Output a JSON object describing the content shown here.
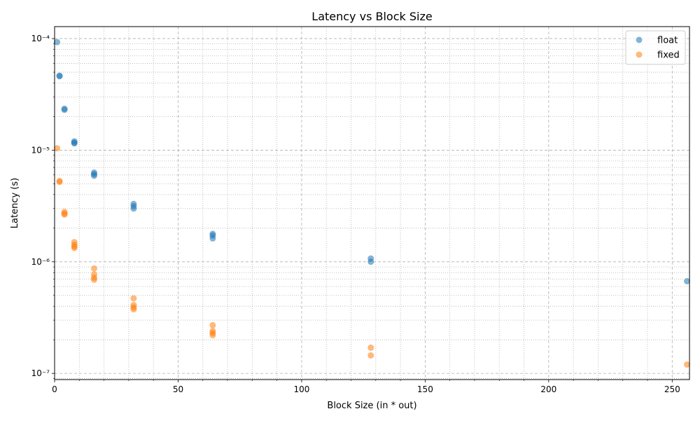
{
  "chart_data": {
    "type": "scatter",
    "title": "Latency vs Block Size",
    "xlabel": "Block Size (in * out)",
    "ylabel": "Latency (s)",
    "xlim": [
      0,
      257
    ],
    "ylim": [
      8.8e-08,
      0.000128
    ],
    "yscale": "log",
    "x_ticks": [
      0,
      50,
      100,
      150,
      200,
      250
    ],
    "x_tick_labels": [
      "0",
      "50",
      "100",
      "150",
      "200",
      "250"
    ],
    "y_ticks": [
      1e-07,
      1e-06,
      1e-05,
      0.0001
    ],
    "y_tick_labels": [
      "10⁻⁷",
      "10⁻⁶",
      "10⁻⁵",
      "10⁻⁴"
    ],
    "grid": true,
    "legend_position": "top-right",
    "series": [
      {
        "name": "float",
        "color": "#1f77b4",
        "points": [
          [
            1,
            9.3e-05
          ],
          [
            2,
            4.65e-05
          ],
          [
            2,
            4.6e-05
          ],
          [
            4,
            2.35e-05
          ],
          [
            4,
            2.3e-05
          ],
          [
            8,
            1.2e-05
          ],
          [
            8,
            1.17e-05
          ],
          [
            8,
            1.15e-05
          ],
          [
            16,
            6.3e-06
          ],
          [
            16,
            6.1e-06
          ],
          [
            16,
            5.9e-06
          ],
          [
            32,
            3.3e-06
          ],
          [
            32,
            3.15e-06
          ],
          [
            32,
            3e-06
          ],
          [
            64,
            1.78e-06
          ],
          [
            64,
            1.72e-06
          ],
          [
            64,
            1.62e-06
          ],
          [
            128,
            1.07e-06
          ],
          [
            128,
            1e-06
          ],
          [
            256,
            6.7e-07
          ]
        ]
      },
      {
        "name": "fixed",
        "color": "#ff7f0e",
        "points": [
          [
            1,
            1.04e-05
          ],
          [
            2,
            5.3e-06
          ],
          [
            2,
            5.2e-06
          ],
          [
            4,
            2.8e-06
          ],
          [
            4,
            2.7e-06
          ],
          [
            4,
            2.65e-06
          ],
          [
            8,
            1.5e-06
          ],
          [
            8,
            1.42e-06
          ],
          [
            8,
            1.37e-06
          ],
          [
            8,
            1.33e-06
          ],
          [
            16,
            8.7e-07
          ],
          [
            16,
            7.7e-07
          ],
          [
            16,
            7.2e-07
          ],
          [
            16,
            6.9e-07
          ],
          [
            32,
            4.7e-07
          ],
          [
            32,
            4.1e-07
          ],
          [
            32,
            3.9e-07
          ],
          [
            32,
            3.75e-07
          ],
          [
            64,
            2.7e-07
          ],
          [
            64,
            2.4e-07
          ],
          [
            64,
            2.3e-07
          ],
          [
            64,
            2.2e-07
          ],
          [
            128,
            1.7e-07
          ],
          [
            128,
            1.45e-07
          ],
          [
            256,
            1.2e-07
          ]
        ]
      }
    ]
  }
}
